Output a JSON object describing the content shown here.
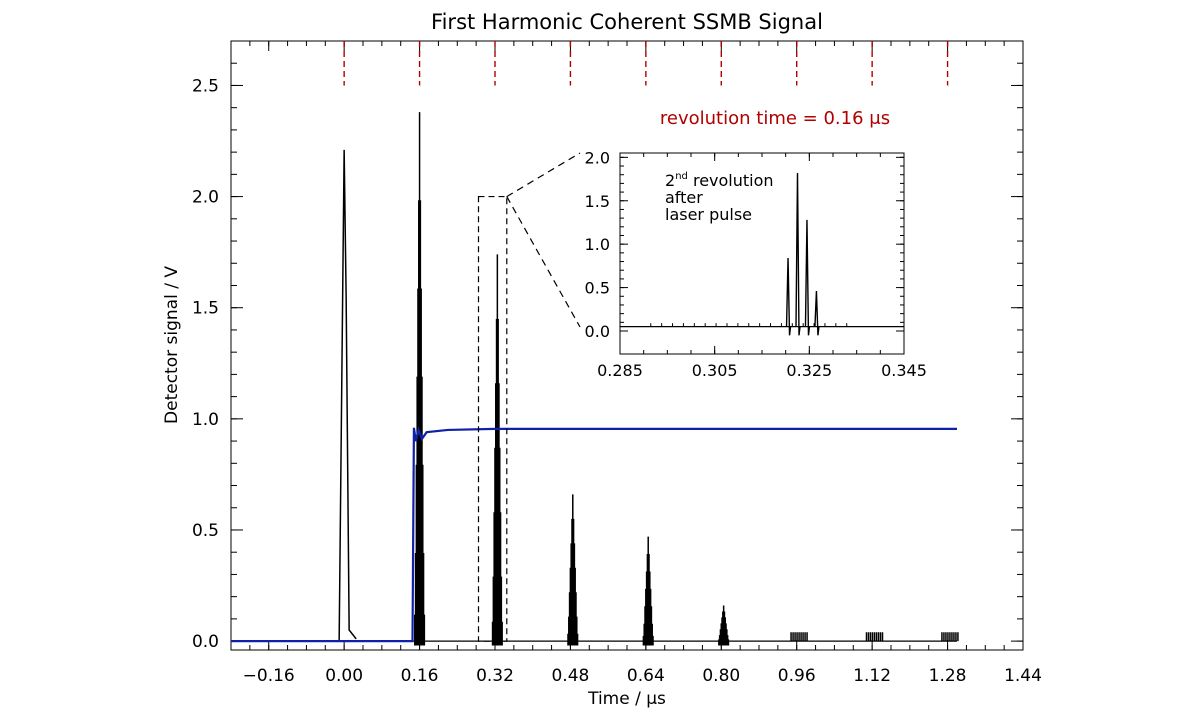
{
  "chart_data": {
    "type": "line",
    "title": "First Harmonic Coherent SSMB Signal",
    "xlabel": "Time / μs",
    "ylabel": "Detector signal / V",
    "xlim": [
      -0.24,
      1.44
    ],
    "ylim": [
      -0.04,
      2.7
    ],
    "x_ticks": [
      "−0.16",
      "0.00",
      "0.16",
      "0.32",
      "0.48",
      "0.64",
      "0.80",
      "0.96",
      "1.12",
      "1.28",
      "1.44"
    ],
    "x_tick_values": [
      -0.16,
      0.0,
      0.16,
      0.32,
      0.48,
      0.64,
      0.8,
      0.96,
      1.12,
      1.28,
      1.44
    ],
    "y_ticks": [
      "0.0",
      "0.5",
      "1.0",
      "1.5",
      "2.0",
      "2.5"
    ],
    "y_tick_values": [
      0.0,
      0.5,
      1.0,
      1.5,
      2.0,
      2.5
    ],
    "revolution_markers": [
      0.0,
      0.16,
      0.32,
      0.48,
      0.64,
      0.8,
      0.96,
      1.12,
      1.28
    ],
    "annotation": {
      "text": "revolution time = 0.16 μs",
      "color": "#b00000"
    },
    "series": [
      {
        "color": "#000000",
        "baseline": 0.0,
        "peaks": [
          {
            "x": 0.0,
            "y": 2.21
          },
          {
            "x": 0.16,
            "y": 2.38
          },
          {
            "x": 0.325,
            "y": 1.74
          },
          {
            "x": 0.485,
            "y": 0.66
          },
          {
            "x": 0.645,
            "y": 0.47
          },
          {
            "x": 0.805,
            "y": 0.16
          },
          {
            "x": 0.965,
            "y": 0.04
          },
          {
            "x": 1.125,
            "y": 0.04
          },
          {
            "x": 1.285,
            "y": 0.04
          }
        ]
      },
      {
        "color": "#1020a8",
        "points": [
          {
            "x": -0.24,
            "y": 0.0
          },
          {
            "x": 0.145,
            "y": 0.0
          },
          {
            "x": 0.148,
            "y": 0.96
          },
          {
            "x": 0.152,
            "y": 0.9
          },
          {
            "x": 0.158,
            "y": 0.95
          },
          {
            "x": 0.165,
            "y": 0.91
          },
          {
            "x": 0.175,
            "y": 0.94
          },
          {
            "x": 0.22,
            "y": 0.95
          },
          {
            "x": 0.32,
            "y": 0.955
          },
          {
            "x": 1.3,
            "y": 0.955
          }
        ]
      }
    ],
    "zoom_box": {
      "x": [
        0.285,
        0.345
      ],
      "y": [
        0.0,
        2.0
      ]
    },
    "inset": {
      "xlim": [
        0.285,
        0.345
      ],
      "ylim": [
        0.0,
        2.05
      ],
      "x_ticks": [
        "0.285",
        "0.305",
        "0.325",
        "0.345"
      ],
      "x_tick_values": [
        0.285,
        0.305,
        0.325,
        0.345
      ],
      "y_ticks": [
        "0.0",
        "0.5",
        "1.0",
        "1.5",
        "2.0"
      ],
      "y_tick_values": [
        0.0,
        0.5,
        1.0,
        1.5,
        2.0
      ],
      "label_lines": [
        "2nd revolution",
        "after",
        "laser pulse"
      ],
      "label_sup": "nd",
      "baseline": 0.05,
      "peaks": [
        {
          "x": 0.3205,
          "y": 0.84
        },
        {
          "x": 0.3225,
          "y": 1.82
        },
        {
          "x": 0.3245,
          "y": 1.28
        },
        {
          "x": 0.3265,
          "y": 0.46
        }
      ]
    }
  }
}
